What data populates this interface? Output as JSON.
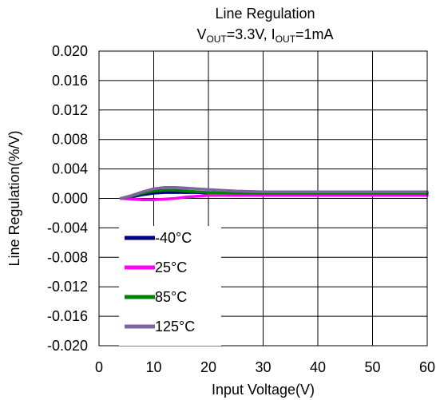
{
  "chart_data": {
    "type": "line",
    "title": "Line Regulation",
    "subtitle_parts": [
      {
        "text": "V",
        "sub": false
      },
      {
        "text": "OUT",
        "sub": true
      },
      {
        "text": "=3.3V, I",
        "sub": false
      },
      {
        "text": "OUT",
        "sub": true
      },
      {
        "text": "=1mA",
        "sub": false
      }
    ],
    "xlabel": "Input Voltage(V)",
    "ylabel": "Line Regulation(%/V)",
    "xlim": [
      0,
      60
    ],
    "ylim": [
      -0.02,
      0.02
    ],
    "xticks": [
      "0",
      "10",
      "20",
      "30",
      "40",
      "50",
      "60"
    ],
    "yticks": [
      "0.020",
      "0.016",
      "0.012",
      "0.008",
      "0.004",
      "0.000",
      "-0.004",
      "-0.008",
      "-0.012",
      "-0.016",
      "-0.020"
    ],
    "grid": true,
    "legend_position": "bottom-left",
    "series": [
      {
        "name": "-40°C",
        "color": "#00007f",
        "x": [
          4,
          6,
          8,
          10,
          12,
          14,
          16,
          18,
          20,
          25,
          30,
          40,
          50,
          60
        ],
        "y": [
          0.0,
          0.0002,
          0.0005,
          0.0007,
          0.0008,
          0.0008,
          0.0008,
          0.0008,
          0.0007,
          0.0007,
          0.0007,
          0.0007,
          0.0007,
          0.0007
        ]
      },
      {
        "name": "25°C",
        "color": "#ff00ff",
        "x": [
          4,
          6,
          8,
          10,
          12,
          14,
          16,
          18,
          20,
          25,
          30,
          40,
          50,
          60
        ],
        "y": [
          0.0,
          -0.0001,
          -0.0002,
          -0.0002,
          -0.0001,
          0.0,
          0.0002,
          0.0003,
          0.0004,
          0.0004,
          0.0004,
          0.0004,
          0.0004,
          0.0004
        ]
      },
      {
        "name": "85°C",
        "color": "#008000",
        "x": [
          4,
          6,
          8,
          10,
          12,
          14,
          16,
          18,
          20,
          25,
          30,
          40,
          50,
          60
        ],
        "y": [
          0.0,
          0.0003,
          0.0007,
          0.001,
          0.0011,
          0.0011,
          0.001,
          0.0009,
          0.0008,
          0.0007,
          0.0007,
          0.0007,
          0.0007,
          0.0007
        ]
      },
      {
        "name": "125°C",
        "color": "#8064a2",
        "x": [
          4,
          6,
          8,
          10,
          12,
          14,
          16,
          18,
          20,
          25,
          30,
          40,
          50,
          60
        ],
        "y": [
          0.0,
          0.0004,
          0.0009,
          0.0013,
          0.0015,
          0.0015,
          0.0014,
          0.0013,
          0.0012,
          0.001,
          0.0009,
          0.0009,
          0.0009,
          0.0009
        ]
      }
    ]
  }
}
